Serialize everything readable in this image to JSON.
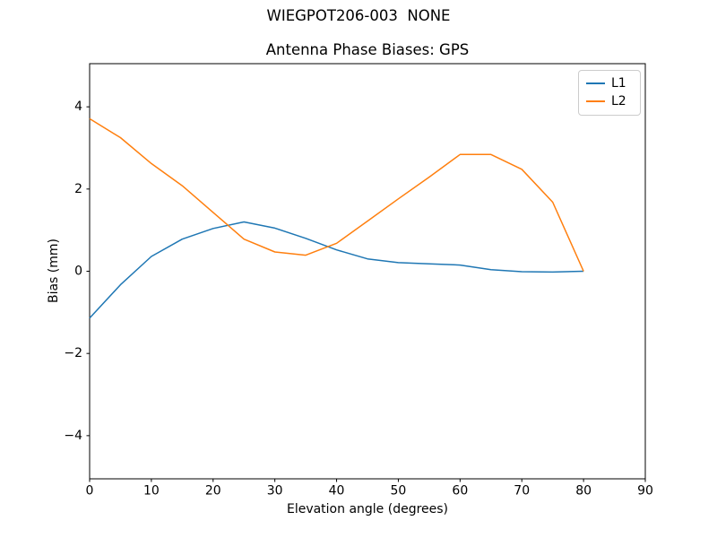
{
  "figure": {
    "suptitle": "WIEGPOT206-003  NONE",
    "background": "#ffffff"
  },
  "chart_data": {
    "type": "line",
    "title": "Antenna Phase Biases: GPS",
    "xlabel": "Elevation angle (degrees)",
    "ylabel": "Bias (mm)",
    "xlim": [
      0,
      90
    ],
    "ylim": [
      -5.05,
      5.05
    ],
    "xticks": [
      0,
      10,
      20,
      30,
      40,
      50,
      60,
      70,
      80,
      90
    ],
    "yticks": [
      -4,
      -2,
      0,
      2,
      4
    ],
    "grid": false,
    "axis_color": "#000000",
    "text_color": "#000000",
    "legend": {
      "position": "upper right",
      "entries": [
        "L1",
        "L2"
      ]
    },
    "x": [
      0,
      5,
      10,
      15,
      20,
      25,
      30,
      35,
      40,
      45,
      50,
      55,
      60,
      65,
      70,
      75,
      80
    ],
    "series": [
      {
        "name": "L1",
        "color": "#1f77b4",
        "values": [
          -1.14,
          -0.33,
          0.36,
          0.78,
          1.04,
          1.2,
          1.05,
          0.8,
          0.52,
          0.3,
          0.21,
          0.18,
          0.15,
          0.04,
          -0.01,
          -0.02,
          0.0
        ]
      },
      {
        "name": "L2",
        "color": "#ff7f0e",
        "values": [
          3.71,
          3.25,
          2.62,
          2.08,
          1.43,
          0.78,
          0.47,
          0.39,
          0.68,
          1.22,
          1.76,
          2.29,
          2.84,
          2.84,
          2.48,
          1.68,
          0.0
        ]
      }
    ]
  }
}
